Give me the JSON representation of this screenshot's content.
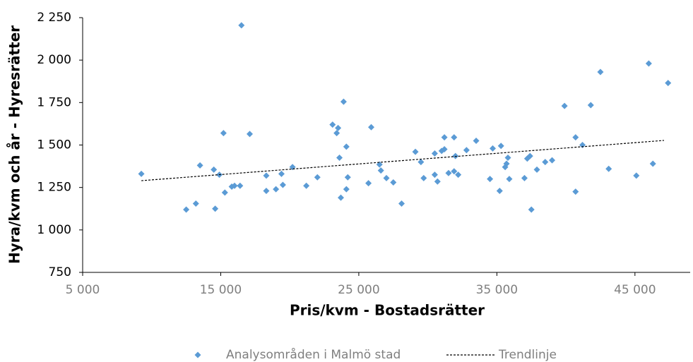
{
  "chart_data": {
    "type": "scatter",
    "xlabel": "Pris/kvm - Bostadsrätter",
    "ylabel": "Hyra/kvm och år - Hyresrätter",
    "xlim": [
      5000,
      49000
    ],
    "xticks": [
      {
        "value": 5000,
        "label": "5 000"
      },
      {
        "value": 15000,
        "label": "15 000"
      },
      {
        "value": 25000,
        "label": "25 000"
      },
      {
        "value": 35000,
        "label": "35 000"
      },
      {
        "value": 45000,
        "label": "45 000"
      }
    ],
    "ylim": [
      750,
      2250
    ],
    "yticks": [
      750,
      {
        "value": 1000,
        "label": "1 000"
      },
      {
        "value": 1250,
        "label": "1 250"
      },
      {
        "value": 1500,
        "label": "1 500"
      },
      {
        "value": 1750,
        "label": "1 750"
      },
      {
        "value": 2000,
        "label": "2 000"
      },
      {
        "value": 2250,
        "label": "2 250"
      }
    ],
    "legend": "bottom",
    "series": [
      {
        "name": "Analysområden i Malmö stad",
        "color": "#5b9bd5",
        "mode": "markers",
        "x": [
          9250,
          12500,
          13200,
          13500,
          14500,
          14600,
          14900,
          15200,
          15300,
          15800,
          16000,
          16400,
          16500,
          17100,
          18300,
          18300,
          19000,
          19400,
          19500,
          20200,
          21200,
          22000,
          23100,
          23400,
          23500,
          23600,
          23700,
          23900,
          24100,
          24100,
          24200,
          25700,
          25900,
          26500,
          26600,
          27000,
          27500,
          28100,
          29100,
          29500,
          29700,
          30500,
          30500,
          30700,
          31000,
          31200,
          31200,
          31500,
          31900,
          31900,
          32000,
          32200,
          32800,
          33500,
          34500,
          34700,
          35200,
          35300,
          35600,
          35700,
          35800,
          35900,
          37000,
          37200,
          37400,
          37500,
          37900,
          38500,
          39000,
          39900,
          40700,
          40700,
          41200,
          41800,
          42500,
          43100,
          45100,
          46000,
          46300,
          47400
        ],
        "values": [
          1330,
          1120,
          1155,
          1380,
          1355,
          1125,
          1325,
          1570,
          1220,
          1255,
          1260,
          1260,
          2205,
          1565,
          1320,
          1230,
          1240,
          1330,
          1265,
          1370,
          1260,
          1310,
          1620,
          1570,
          1600,
          1425,
          1190,
          1755,
          1490,
          1240,
          1310,
          1275,
          1605,
          1385,
          1350,
          1305,
          1280,
          1155,
          1460,
          1400,
          1305,
          1325,
          1450,
          1285,
          1465,
          1545,
          1475,
          1335,
          1545,
          1345,
          1435,
          1325,
          1470,
          1525,
          1300,
          1480,
          1230,
          1495,
          1370,
          1390,
          1425,
          1300,
          1305,
          1420,
          1435,
          1120,
          1355,
          1400,
          1410,
          1730,
          1545,
          1225,
          1500,
          1735,
          1930,
          1360,
          1320,
          1980,
          1390,
          1865
        ]
      },
      {
        "name": "Trendlinje",
        "color": "#000000",
        "mode": "dashed-line",
        "x": [
          9250,
          47100
        ],
        "values": [
          1290,
          1527
        ]
      }
    ]
  }
}
